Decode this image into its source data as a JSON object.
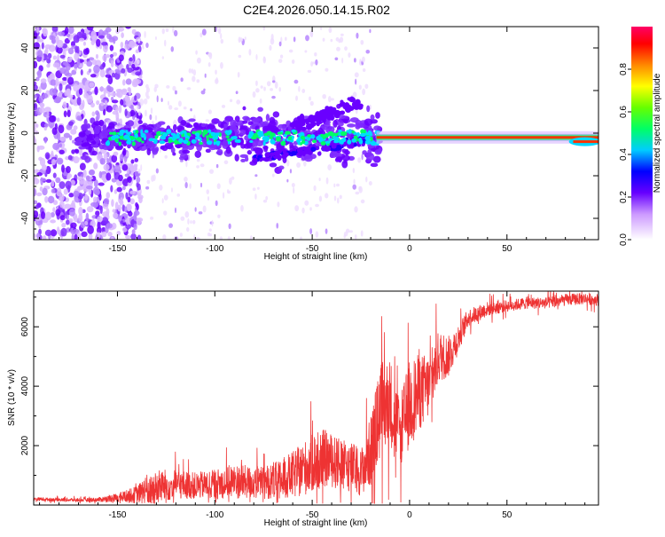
{
  "title": "C2E4.2026.050.14.15.R02",
  "chart_data": [
    {
      "type": "heatmap",
      "name": "spectrogram",
      "xlabel": "Height of straight line (km)",
      "ylabel": "Frequency (Hz)",
      "xlim": [
        -193,
        97
      ],
      "ylim": [
        -50,
        50
      ],
      "xticks": [
        -150,
        -100,
        -50,
        0,
        50
      ],
      "yticks": [
        -40,
        -20,
        0,
        20,
        40
      ],
      "colorbar": {
        "label": "Normalized spectral amplitude",
        "range": [
          0,
          1
        ],
        "ticks": [
          0.0,
          0.2,
          0.4,
          0.6,
          0.8
        ],
        "tick_labels": [
          "0.0",
          "0.2",
          "0.4",
          "0.6",
          "0.8"
        ]
      },
      "features": [
        {
          "description": "carrier trace",
          "x_range": [
            -17,
            97
          ],
          "frequency_hz": -2,
          "amplitude": 0.9
        },
        {
          "description": "scintillating trace",
          "x_range": [
            -165,
            -17
          ],
          "frequency_hz": -2,
          "amplitude": 0.35
        },
        {
          "description": "scattered noise",
          "x_range": [
            -193,
            -140
          ],
          "frequency_range": [
            -50,
            50
          ],
          "amplitude": 0.1
        }
      ]
    },
    {
      "type": "line",
      "name": "snr",
      "xlabel": "Height of straight line (km)",
      "ylabel": "SNR (10 * v/v)",
      "xlim": [
        -193,
        97
      ],
      "ylim": [
        0,
        7200
      ],
      "xticks": [
        -150,
        -100,
        -50,
        0,
        50
      ],
      "yticks": [
        2000,
        4000,
        6000
      ],
      "color": "#ee3333",
      "series": [
        {
          "name": "SNR",
          "x": [
            -193,
            -180,
            -170,
            -160,
            -150,
            -140,
            -135,
            -130,
            -120,
            -110,
            -100,
            -90,
            -80,
            -70,
            -60,
            -50,
            -45,
            -40,
            -35,
            -30,
            -25,
            -20,
            -15,
            -10,
            -5,
            0,
            5,
            10,
            15,
            20,
            25,
            30,
            40,
            50,
            60,
            70,
            80,
            90,
            97
          ],
          "y": [
            200,
            180,
            170,
            180,
            250,
            350,
            500,
            600,
            700,
            650,
            700,
            800,
            750,
            800,
            1000,
            1400,
            1600,
            1500,
            1300,
            1300,
            1100,
            1800,
            3200,
            3500,
            2400,
            3400,
            3800,
            4000,
            5000,
            5000,
            5600,
            6300,
            6600,
            6700,
            6800,
            6800,
            6900,
            6950,
            6900
          ],
          "amplitude": [
            60,
            60,
            60,
            80,
            150,
            300,
            500,
            600,
            500,
            450,
            500,
            600,
            550,
            600,
            800,
            1000,
            1000,
            900,
            900,
            850,
            800,
            1200,
            1600,
            1500,
            1200,
            1500,
            1300,
            1100,
            900,
            700,
            500,
            300,
            250,
            200,
            200,
            200,
            200,
            200,
            200
          ]
        }
      ]
    }
  ]
}
